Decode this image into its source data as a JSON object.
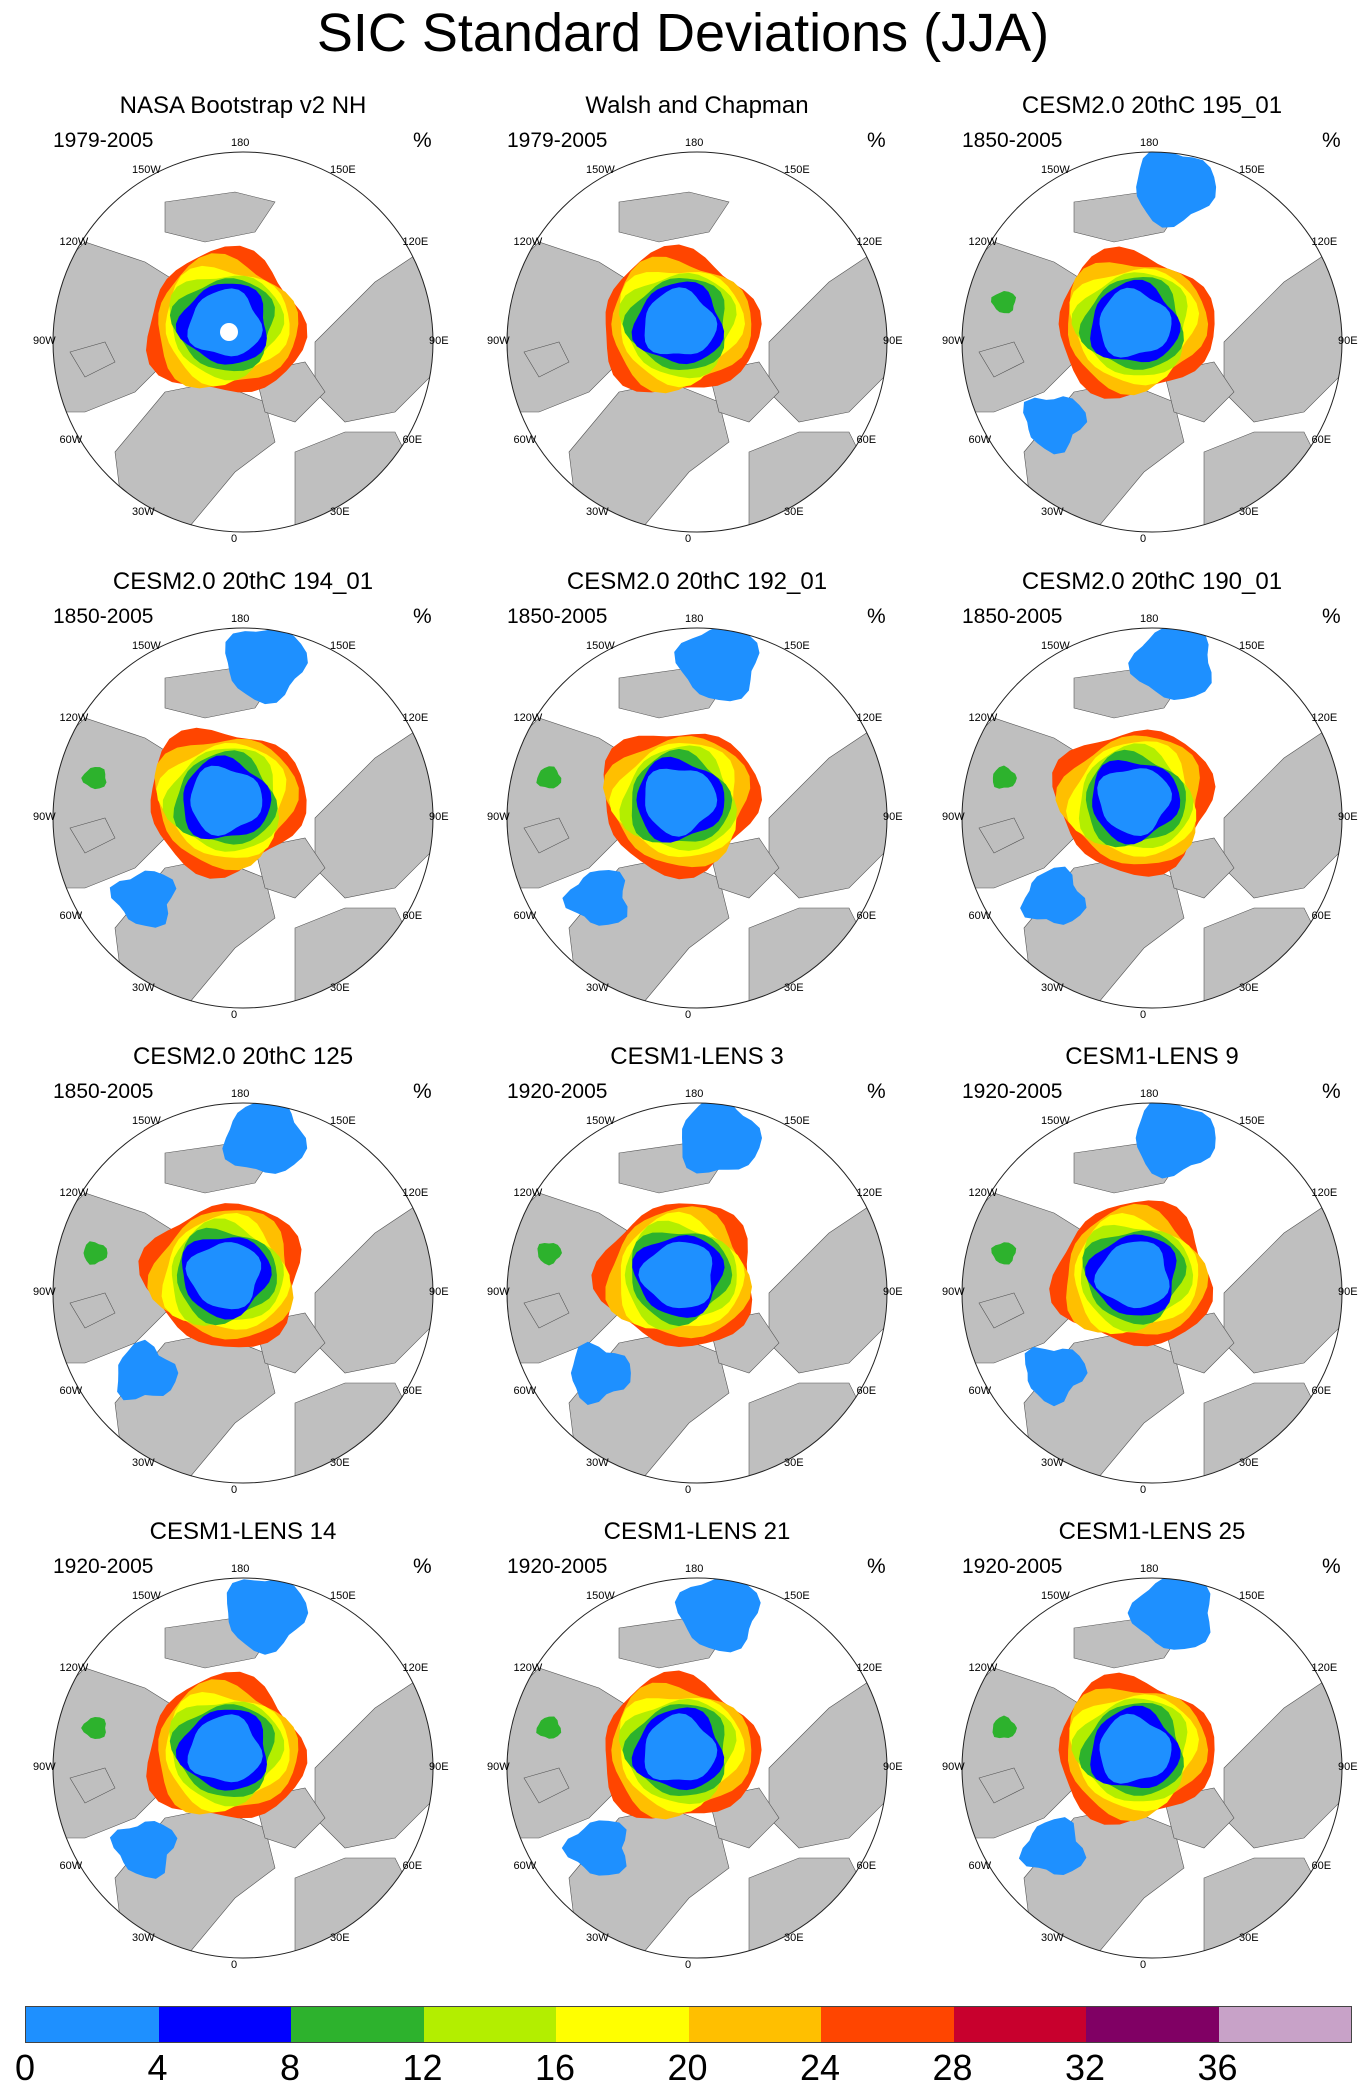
{
  "title": "SIC Standard Deviations (JJA)",
  "unit": "%",
  "meridian_labels": [
    "180",
    "150E",
    "120E",
    "90E",
    "60E",
    "30E",
    "0",
    "30W",
    "60W",
    "90W",
    "120W",
    "150W"
  ],
  "colors": {
    "land": "#bfbfbf",
    "ocean": "#ffffff",
    "levels": [
      "#1e90ff",
      "#0000ff",
      "#2db22d",
      "#b3ee00",
      "#ffff00",
      "#ffbf00",
      "#ff4500",
      "#c8002d",
      "#800064",
      "#c8a2c8"
    ]
  },
  "colorbar": {
    "ticks": [
      "0",
      "4",
      "8",
      "12",
      "16",
      "20",
      "24",
      "28",
      "32",
      "36"
    ]
  },
  "panels": [
    {
      "title": "NASA Bootstrap v2 NH",
      "period": "1979-2005"
    },
    {
      "title": "Walsh and Chapman",
      "period": "1979-2005"
    },
    {
      "title": "CESM2.0 20thC 195_01",
      "period": "1850-2005"
    },
    {
      "title": "CESM2.0 20thC 194_01",
      "period": "1850-2005"
    },
    {
      "title": "CESM2.0 20thC 192_01",
      "period": "1850-2005"
    },
    {
      "title": "CESM2.0 20thC 190_01",
      "period": "1850-2005"
    },
    {
      "title": "CESM2.0 20thC 125",
      "period": "1850-2005"
    },
    {
      "title": "CESM1-LENS 3",
      "period": "1920-2005"
    },
    {
      "title": "CESM1-LENS 9",
      "period": "1920-2005"
    },
    {
      "title": "CESM1-LENS 14",
      "period": "1920-2005"
    },
    {
      "title": "CESM1-LENS 21",
      "period": "1920-2005"
    },
    {
      "title": "CESM1-LENS 25",
      "period": "1920-2005"
    }
  ]
}
